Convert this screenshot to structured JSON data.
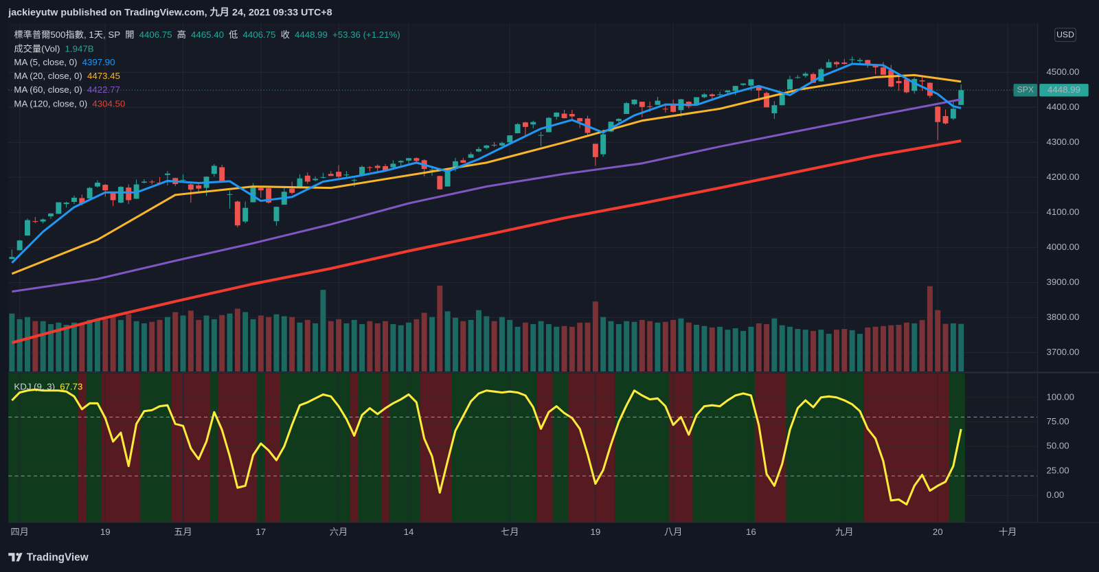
{
  "chart_data": {
    "type": "candlestick",
    "header": "jackieyutw published on TradingView.com, 九月 24, 2021 09:33 UTC+8",
    "symbol": "標準普爾500指數, 1天, SP",
    "ohlc_legend": [
      {
        "label": "開",
        "value": "4406.75"
      },
      {
        "label": "高",
        "value": "4465.40"
      },
      {
        "label": "低",
        "value": "4406.75"
      },
      {
        "label": "收",
        "value": "4448.99"
      }
    ],
    "change": "+53.36 (+1.21%)",
    "currency": "USD",
    "last_price": {
      "symbol": "SPX",
      "label": "4448.99"
    },
    "branding": "TradingView",
    "up_color": "#26a69a",
    "down_color": "#ef5350",
    "grid": true,
    "xlim": [
      -0.45,
      131.8
    ],
    "xticks": [
      {
        "value": 1,
        "label": "四月"
      },
      {
        "value": 12,
        "label": "19"
      },
      {
        "value": 22,
        "label": "五月"
      },
      {
        "value": 32,
        "label": "17"
      },
      {
        "value": 42,
        "label": "六月"
      },
      {
        "value": 51,
        "label": "14"
      },
      {
        "value": 64,
        "label": "七月"
      },
      {
        "value": 75,
        "label": "19"
      },
      {
        "value": 85,
        "label": "八月"
      },
      {
        "value": 95,
        "label": "16"
      },
      {
        "value": 107,
        "label": "九月"
      },
      {
        "value": 119,
        "label": "20"
      },
      {
        "value": 128,
        "label": "十月"
      }
    ],
    "ylim": [
      3646,
      4640
    ],
    "yticks": [
      {
        "value": 3700,
        "label": "3700.00"
      },
      {
        "value": 3800,
        "label": "3800.00"
      },
      {
        "value": 3900,
        "label": "3900.00"
      },
      {
        "value": 4000,
        "label": "4000.00"
      },
      {
        "value": 4100,
        "label": "4100.00"
      },
      {
        "value": 4200,
        "label": "4200.00"
      },
      {
        "value": 4300,
        "label": "4300.00"
      },
      {
        "value": 4400,
        "label": "4400.00"
      },
      {
        "value": 4500,
        "label": "4500.00"
      }
    ],
    "open": [
      3967,
      3992,
      4034,
      4075,
      4074,
      4089,
      4096,
      4124,
      4130,
      4141,
      4140,
      4174,
      4179,
      4159,
      4128,
      4171,
      4139,
      4185,
      4188,
      4185,
      4207,
      4198,
      4192,
      4180,
      4177,
      4170,
      4210,
      4229,
      4150,
      4131,
      4074,
      4129,
      4170,
      4169,
      4075,
      4122,
      4168,
      4171,
      4205,
      4192,
      4201,
      4210,
      4216,
      4207,
      4191,
      4207,
      4229,
      4233,
      4232,
      4229,
      4243,
      4248,
      4255,
      4249,
      4220,
      4204,
      4174,
      4224,
      4249,
      4256,
      4274,
      4284,
      4293,
      4291,
      4300,
      4326,
      4357,
      4351,
      4321,
      4329,
      4373,
      4382,
      4381,
      4369,
      4368,
      4296,
      4266,
      4331,
      4361,
      4381,
      4409,
      4416,
      4403,
      4407,
      4396,
      4406,
      4392,
      4416,
      4407,
      4429,
      4437,
      4436,
      4443,
      4447,
      4464,
      4462,
      4462,
      4441,
      4383,
      4406,
      4451,
      4484,
      4490,
      4495,
      4474,
      4513,
      4529,
      4528,
      4535,
      4532,
      4535,
      4518,
      4514,
      4506,
      4475,
      4480,
      4447,
      4477,
      4470,
      4402,
      4375,
      4368,
      4406.75
    ],
    "high": [
      3994,
      4021,
      4083,
      4087,
      4083,
      4098,
      4129,
      4131,
      4148,
      4151,
      4173,
      4192,
      4181,
      4160,
      4175,
      4180,
      4194,
      4195,
      4193,
      4201,
      4218,
      4199,
      4209,
      4187,
      4187,
      4203,
      4238,
      4236,
      4162,
      4134,
      4131,
      4184,
      4171,
      4170,
      4117,
      4173,
      4188,
      4209,
      4214,
      4203,
      4213,
      4218,
      4235,
      4218,
      4197,
      4234,
      4232,
      4237,
      4238,
      4249,
      4249,
      4255,
      4257,
      4252,
      4233,
      4205,
      4227,
      4256,
      4256,
      4272,
      4287,
      4293,
      4301,
      4302,
      4320,
      4355,
      4359,
      4362,
      4330,
      4372,
      4386,
      4393,
      4393,
      4370,
      4376,
      4296,
      4337,
      4359,
      4369,
      4415,
      4423,
      4416,
      4416,
      4430,
      4408,
      4422,
      4424,
      4417,
      4429,
      4441,
      4440,
      4445,
      4449,
      4461,
      4468,
      4480,
      4462,
      4445,
      4418,
      4444,
      4490,
      4492,
      4501,
      4499,
      4513,
      4537,
      4532,
      4538,
      4545,
      4541,
      4536,
      4521,
      4529,
      4521,
      4492,
      4481,
      4486,
      4486,
      4471,
      4403,
      4394,
      4416,
      4465.4
    ],
    "low": [
      3966,
      3992,
      4034,
      4069,
      4069,
      4082,
      4096,
      4114,
      4124,
      4120,
      4140,
      4171,
      4145,
      4118,
      4126,
      4124,
      4138,
      4183,
      4180,
      4181,
      4177,
      4175,
      4188,
      4128,
      4160,
      4147,
      4202,
      4188,
      4111,
      4057,
      4069,
      4129,
      4142,
      4125,
      4062,
      4122,
      4152,
      4171,
      4182,
      4189,
      4197,
      4204,
      4197,
      4199,
      4173,
      4206,
      4217,
      4211,
      4219,
      4221,
      4233,
      4235,
      4238,
      4203,
      4204,
      4165,
      4174,
      4217,
      4241,
      4256,
      4272,
      4280,
      4287,
      4289,
      4300,
      4326,
      4315,
      4340,
      4289,
      4329,
      4365,
      4368,
      4362,
      4341,
      4322,
      4233,
      4259,
      4329,
      4350,
      4381,
      4406,
      4372,
      4387,
      4407,
      4385,
      4385,
      4374,
      4397,
      4406,
      4426,
      4425,
      4429,
      4439,
      4435,
      4461,
      4447,
      4418,
      4400,
      4367,
      4406,
      4451,
      4482,
      4485,
      4469,
      4473,
      4513,
      4514,
      4522,
      4526,
      4522,
      4513,
      4494,
      4493,
      4457,
      4447,
      4439,
      4439,
      4447,
      4427,
      4306,
      4351,
      4364,
      4406.75
    ],
    "close": [
      3973,
      4020,
      4078,
      4074,
      4080,
      4097,
      4129,
      4128,
      4142,
      4125,
      4170,
      4185,
      4163,
      4135,
      4173,
      4135,
      4180,
      4188,
      4187,
      4183,
      4211,
      4181,
      4193,
      4165,
      4168,
      4202,
      4233,
      4188,
      4152,
      4063,
      4113,
      4174,
      4163,
      4128,
      4116,
      4159,
      4156,
      4197,
      4188,
      4196,
      4201,
      4204,
      4202,
      4208,
      4193,
      4230,
      4227,
      4227,
      4220,
      4239,
      4247,
      4255,
      4247,
      4224,
      4222,
      4166,
      4225,
      4246,
      4242,
      4266,
      4281,
      4291,
      4292,
      4298,
      4320,
      4352,
      4344,
      4358,
      4321,
      4370,
      4385,
      4369,
      4374,
      4360,
      4327,
      4258,
      4323,
      4359,
      4367,
      4412,
      4422,
      4401,
      4401,
      4419,
      4395,
      4387,
      4423,
      4403,
      4429,
      4437,
      4432,
      4437,
      4448,
      4461,
      4468,
      4480,
      4448,
      4400,
      4406,
      4442,
      4480,
      4486,
      4496,
      4470,
      4509,
      4529,
      4523,
      4524,
      4537,
      4535,
      4520,
      4514,
      4493,
      4459,
      4469,
      4443,
      4481,
      4474,
      4433,
      4358,
      4354,
      4396,
      4448.99
    ],
    "volume": {
      "name": "成交量(Vol)",
      "value_label": "1.947B",
      "ylim": [
        0,
        4.3
      ],
      "up_color": "#1c6962",
      "down_color": "#7a3236",
      "values": [
        2.37,
        2.14,
        2.23,
        2.06,
        2.06,
        1.94,
        2.0,
        1.91,
        2.0,
        1.94,
        2.11,
        2.14,
        2.14,
        2.29,
        2.11,
        2.34,
        2.06,
        1.97,
        2.03,
        2.11,
        2.23,
        2.43,
        2.29,
        2.49,
        2.11,
        2.29,
        2.14,
        2.31,
        2.37,
        2.57,
        2.43,
        2.14,
        2.29,
        2.23,
        2.34,
        2.26,
        2.23,
        2.0,
        2.11,
        1.97,
        3.34,
        2.06,
        2.14,
        1.97,
        2.11,
        1.94,
        2.06,
        1.97,
        2.06,
        1.94,
        1.89,
        2.0,
        2.14,
        2.4,
        2.23,
        3.51,
        2.46,
        2.2,
        2.06,
        2.11,
        2.51,
        2.26,
        2.06,
        2.23,
        2.11,
        1.83,
        2.0,
        1.94,
        2.06,
        1.94,
        1.83,
        1.86,
        1.83,
        2.0,
        2.0,
        2.86,
        2.23,
        2.06,
        1.94,
        2.06,
        2.03,
        2.11,
        2.06,
        2.0,
        2.03,
        2.11,
        2.17,
        2.0,
        1.91,
        1.86,
        1.8,
        1.83,
        1.71,
        1.77,
        1.66,
        1.83,
        1.97,
        1.94,
        2.17,
        1.89,
        1.83,
        1.74,
        1.71,
        1.66,
        1.71,
        1.54,
        1.71,
        1.74,
        1.69,
        1.54,
        1.8,
        1.83,
        1.86,
        1.89,
        1.91,
        2.0,
        1.97,
        2.1,
        3.49,
        2.51,
        1.95,
        1.97,
        1.947
      ]
    },
    "ma": [
      {
        "name": "MA (5, close, 0)",
        "value_label": "4397.90",
        "color": "#2196f3",
        "x": [
          0,
          4,
          8,
          12,
          16,
          20,
          24,
          28,
          32,
          36,
          40,
          44,
          48,
          52,
          56,
          60,
          64,
          68,
          72,
          76,
          80,
          84,
          88,
          92,
          96,
          100,
          104,
          108,
          112,
          116,
          119,
          120,
          121,
          122
        ],
        "values": [
          3956,
          4045,
          4115,
          4157,
          4157,
          4190,
          4184,
          4189,
          4133,
          4144,
          4188,
          4202,
          4219,
          4242,
          4217,
          4252,
          4296,
          4339,
          4364,
          4328,
          4377,
          4408,
          4407,
          4437,
          4461,
          4435,
          4488,
          4524,
          4520,
          4469,
          4438,
          4420,
          4403,
          4397.9
        ]
      },
      {
        "name": "MA (20, close, 0)",
        "value_label": "4473.45",
        "color": "#f7b52c",
        "x": [
          0,
          11,
          21,
          31,
          41,
          51,
          61,
          71,
          81,
          91,
          101,
          111,
          116,
          122
        ],
        "values": [
          3925,
          4022,
          4150,
          4174,
          4170,
          4206,
          4242,
          4300,
          4362,
          4396,
          4450,
          4486,
          4492,
          4473.45
        ]
      },
      {
        "name": "MA (60, close, 0)",
        "value_label": "4422.77",
        "color": "#7e57c2",
        "x": [
          0,
          11,
          21,
          31,
          41,
          51,
          61,
          71,
          81,
          91,
          101,
          111,
          122
        ],
        "values": [
          3874,
          3910,
          3962,
          4012,
          4066,
          4126,
          4174,
          4210,
          4240,
          4288,
          4332,
          4376,
          4422.77
        ]
      },
      {
        "name": "MA (120, close, 0)",
        "value_label": "4304.50",
        "color": "#f23b2f",
        "x": [
          0,
          11,
          21,
          31,
          41,
          51,
          61,
          71,
          81,
          91,
          101,
          111,
          122
        ],
        "values": [
          3728,
          3794,
          3846,
          3896,
          3940,
          3990,
          4036,
          4084,
          4126,
          4170,
          4216,
          4262,
          4304.5
        ]
      }
    ],
    "kd": {
      "name": "KDJ (9, 3)",
      "value_label": "67.73",
      "color": "#ffeb3b",
      "ylim": [
        -27.1,
        124.3
      ],
      "yticks": [
        {
          "value": 0,
          "label": "0.00"
        },
        {
          "value": 25,
          "label": "25.00"
        },
        {
          "value": 50,
          "label": "50.00"
        },
        {
          "value": 75,
          "label": "75.00"
        },
        {
          "value": 100,
          "label": "100.00"
        }
      ],
      "bands": [
        80,
        20
      ],
      "base_color": "#0f3a1c",
      "zone_color": "#571a20",
      "zones": [
        [
          9,
          9
        ],
        [
          12,
          16
        ],
        [
          21,
          25
        ],
        [
          27,
          31
        ],
        [
          33,
          34
        ],
        [
          44,
          44
        ],
        [
          48,
          48
        ],
        [
          53,
          56
        ],
        [
          68,
          69
        ],
        [
          72,
          77
        ],
        [
          85,
          87
        ],
        [
          96,
          99
        ],
        [
          110,
          120
        ]
      ],
      "values": [
        97,
        105,
        107,
        108,
        107,
        107,
        107,
        106,
        101,
        88,
        94,
        94,
        79,
        55,
        64,
        30,
        73,
        86,
        87,
        91,
        92,
        73,
        71,
        48,
        37,
        55,
        85,
        67,
        40,
        8,
        10,
        41,
        53,
        46,
        36,
        50,
        72,
        92,
        95,
        99,
        103,
        101,
        91,
        78,
        61,
        82,
        89,
        83,
        89,
        94,
        98,
        103,
        95,
        58,
        40,
        3,
        35,
        66,
        81,
        96,
        104,
        107,
        106,
        105,
        106,
        105,
        102,
        90,
        68,
        85,
        91,
        84,
        79,
        68,
        42,
        12,
        26,
        52,
        75,
        92,
        107,
        102,
        98,
        99,
        91,
        72,
        80,
        62,
        82,
        91,
        92,
        91,
        97,
        102,
        104,
        102,
        72,
        22,
        10,
        32,
        67,
        89,
        97,
        90,
        100,
        101,
        100,
        97,
        93,
        86,
        68,
        58,
        35,
        -5,
        -4,
        -9,
        10,
        21,
        5,
        10,
        14,
        30,
        67.73
      ]
    }
  }
}
